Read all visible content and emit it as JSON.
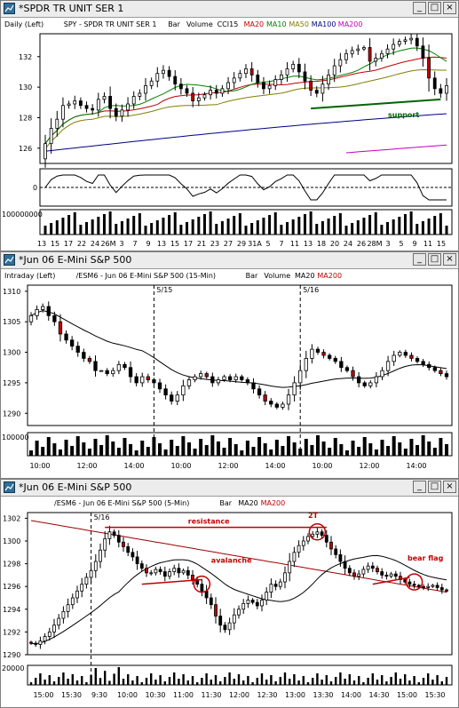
{
  "windows": [
    {
      "title": "*SPDR TR UNIT SER 1",
      "header": [
        {
          "text": "Daily  (Left)",
          "color": "#000000"
        },
        {
          "text": "SPY - SPDR TR UNIT SER 1",
          "color": "#000000"
        },
        {
          "text": "Bar",
          "color": "#000000"
        },
        {
          "text": "Volume",
          "color": "#000000"
        },
        {
          "text": "CCI15",
          "color": "#000000"
        },
        {
          "text": "MA20",
          "color": "#c00000"
        },
        {
          "text": "MA10",
          "color": "#008000"
        },
        {
          "text": "MA50",
          "color": "#808000"
        },
        {
          "text": "MA100",
          "color": "#000080"
        },
        {
          "text": "MA200",
          "color": "#c000c0"
        }
      ],
      "price_ticks": [
        "132",
        "130",
        "128",
        "126"
      ],
      "cci_tick": "0",
      "volume_tick": "100000000",
      "x_ticks": [
        "13",
        "15",
        "17",
        "22",
        "24",
        "26M",
        "3",
        "7",
        "9",
        "13",
        "15",
        "17",
        "21",
        "23",
        "27",
        "29",
        "31A",
        "5",
        "7",
        "11",
        "13",
        "18",
        "20",
        "24",
        "26",
        "28M",
        "3",
        "5",
        "9",
        "11",
        "15"
      ],
      "annotation": "support"
    },
    {
      "title": "*Jun 06  E-Mini S&P 500",
      "header": [
        {
          "text": "Intraday  (Left)",
          "color": "#000000"
        },
        {
          "text": "/ESM6 - Jun 06  E-Mini S&P 500  (15-Min)",
          "color": "#000000"
        },
        {
          "text": "Bar",
          "color": "#000000"
        },
        {
          "text": "Volume",
          "color": "#000000"
        },
        {
          "text": "MA20",
          "color": "#000000"
        },
        {
          "text": "MA200",
          "color": "#c00000"
        }
      ],
      "price_ticks": [
        "1310",
        "1305",
        "1300",
        "1295",
        "1290"
      ],
      "volume_tick": "100000",
      "session_labels": [
        "5/15",
        "5/16"
      ],
      "x_ticks": [
        "10:00",
        "12:00",
        "14:00",
        "10:00",
        "12:00",
        "14:00",
        "10:00",
        "12:00",
        "14:00"
      ]
    },
    {
      "title": "*Jun 06  E-Mini S&P 500",
      "header": [
        {
          "text": "/ESM6 - Jun 06  E-Mini S&P 500  (5-Min)",
          "color": "#000000"
        },
        {
          "text": "Bar",
          "color": "#000000"
        },
        {
          "text": "MA20",
          "color": "#000000"
        },
        {
          "text": "MA200",
          "color": "#c00000"
        }
      ],
      "session_label": "5/16",
      "price_ticks": [
        "1302",
        "1300",
        "1298",
        "1296",
        "1294",
        "1292",
        "1290"
      ],
      "volume_tick": "20000",
      "x_ticks": [
        "15:00",
        "15:30",
        "9:30",
        "10:00",
        "10:30",
        "11:00",
        "11:30",
        "12:00",
        "12:30",
        "13:00",
        "13:30",
        "14:00",
        "14:30",
        "15:00",
        "15:30"
      ],
      "annotations": [
        "resistance",
        "2T",
        "avalanche",
        "bear flag"
      ]
    }
  ],
  "chart_data": [
    {
      "type": "candlestick",
      "title": "SPY - SPDR TR UNIT SER 1",
      "interval": "Daily",
      "ylim": [
        125,
        133.5
      ],
      "close": [
        126.3,
        127.3,
        127.9,
        128.8,
        128.9,
        129.1,
        128.8,
        128.6,
        128.5,
        129.2,
        129.4,
        128.6,
        128.1,
        128.5,
        128.9,
        129.4,
        129.6,
        130.1,
        130.4,
        130.9,
        131.1,
        130.7,
        130.2,
        129.9,
        129.6,
        129.1,
        129.3,
        129.5,
        129.8,
        129.6,
        129.9,
        130.3,
        130.6,
        130.9,
        131.2,
        130.8,
        130.3,
        129.9,
        130.1,
        130.5,
        130.8,
        131.2,
        131.5,
        131.0,
        130.4,
        129.8,
        129.6,
        130.2,
        130.8,
        131.4,
        131.8,
        132.2,
        132.4,
        132.5,
        132.6,
        131.7,
        131.9,
        132.2,
        132.5,
        132.8,
        133.0,
        133.1,
        133.2,
        132.7,
        131.9,
        130.6,
        129.9,
        129.6,
        130.1
      ],
      "annotation": "support",
      "cci_zero": "0",
      "volume_scale": "100000000"
    },
    {
      "type": "candlestick",
      "title": "/ESM6 - Jun 06  E-Mini S&P 500  (15-Min)",
      "interval": "15-Min",
      "sessions": [
        "5/15",
        "5/16"
      ],
      "ylim": [
        1288,
        1311
      ],
      "close": [
        1306,
        1307,
        1307.5,
        1306,
        1305,
        1303,
        1302,
        1301,
        1300,
        1299,
        1298.5,
        1297,
        1297,
        1296.5,
        1297,
        1298,
        1297.5,
        1296,
        1295,
        1296,
        1295.5,
        1295,
        1294,
        1293,
        1292,
        1293,
        1294.5,
        1295.5,
        1296,
        1296.5,
        1296,
        1295,
        1295.5,
        1296,
        1295.5,
        1296,
        1295.5,
        1295,
        1294,
        1293,
        1292,
        1291.5,
        1291,
        1291.5,
        1293,
        1295,
        1297,
        1299,
        1300.5,
        1300,
        1299.5,
        1299,
        1298.5,
        1297.5,
        1297,
        1296,
        1295,
        1294.5,
        1295,
        1296,
        1297,
        1298.5,
        1299.5,
        1300,
        1299.5,
        1299,
        1298.5,
        1298,
        1297.5,
        1297,
        1296.5,
        1296
      ],
      "volume_scale": "100000"
    },
    {
      "type": "candlestick",
      "title": "/ESM6 - Jun 06  E-Mini S&P 500  (5-Min)",
      "interval": "5-Min",
      "session": "5/16",
      "ylim": [
        1290,
        1302.5
      ],
      "close": [
        1291.0,
        1290.9,
        1291.2,
        1291.6,
        1292.0,
        1292.6,
        1293.2,
        1293.8,
        1294.4,
        1295.0,
        1295.6,
        1296.2,
        1296.8,
        1297.4,
        1298.2,
        1299.2,
        1300.2,
        1300.8,
        1300.5,
        1299.9,
        1299.5,
        1299.0,
        1298.6,
        1298.0,
        1297.6,
        1297.2,
        1297.2,
        1297.5,
        1297.3,
        1296.9,
        1297.3,
        1297.6,
        1297.2,
        1297.4,
        1297.0,
        1296.6,
        1296.2,
        1295.6,
        1295.0,
        1294.4,
        1293.4,
        1292.6,
        1292.2,
        1292.8,
        1293.5,
        1294.0,
        1294.5,
        1294.8,
        1294.6,
        1294.3,
        1294.8,
        1295.5,
        1296.2,
        1296.0,
        1296.4,
        1297.2,
        1298.2,
        1299.0,
        1299.6,
        1300.0,
        1300.4,
        1300.6,
        1300.8,
        1300.5,
        1299.9,
        1299.3,
        1298.8,
        1298.2,
        1297.6,
        1297.2,
        1296.9,
        1297.1,
        1297.5,
        1297.8,
        1297.6,
        1297.3,
        1297.0,
        1296.9,
        1297.1,
        1296.9,
        1296.6,
        1296.4,
        1296.2,
        1296.1,
        1296.0,
        1295.9,
        1296.0,
        1296.1,
        1295.9,
        1295.7,
        1295.6
      ],
      "annotations": [
        "resistance",
        "2T",
        "avalanche",
        "bear flag"
      ],
      "volume_scale": "20000"
    }
  ]
}
